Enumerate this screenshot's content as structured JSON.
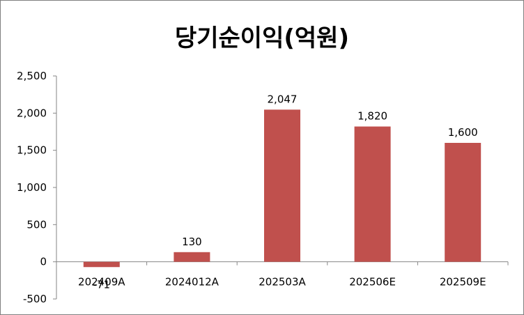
{
  "chart_data": {
    "type": "bar",
    "title": "당기순이익(억원)",
    "categories": [
      "202409A",
      "2024012A",
      "202503A",
      "202506E",
      "202509E"
    ],
    "series": [
      {
        "values": [
          -71,
          130,
          2047,
          1820,
          1600
        ]
      }
    ],
    "data_labels": [
      "-71",
      "130",
      "2,047",
      "1,820",
      "1,600"
    ],
    "y_ticks": [
      "2,500",
      "2,000",
      "1,500",
      "1,000",
      "500",
      "0",
      "-500"
    ],
    "ylim": [
      -500,
      2500
    ],
    "grid": false,
    "legend": "none",
    "bar_color": "#c0504d",
    "axis_color": "#868686"
  }
}
